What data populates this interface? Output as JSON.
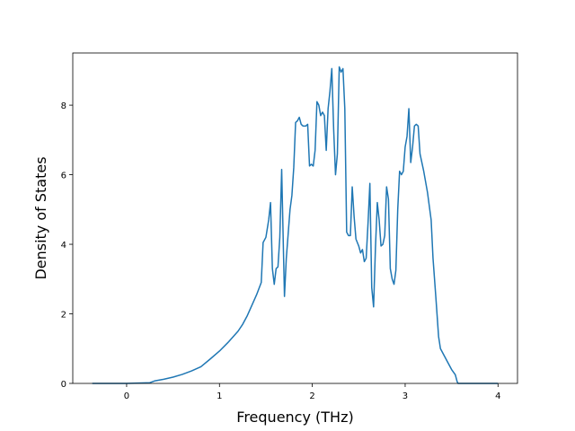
{
  "chart_data": {
    "type": "line",
    "xlabel": "Frequency (THz)",
    "ylabel": "Density of States",
    "color": "#1f77b4",
    "xlim": [
      -0.58,
      4.21
    ],
    "ylim": [
      0,
      9.5
    ],
    "xticks": [
      0,
      1,
      2,
      3,
      4
    ],
    "yticks": [
      0,
      2,
      4,
      6,
      8
    ],
    "x": [
      -0.37,
      0,
      0.25,
      0.3,
      0.4,
      0.5,
      0.6,
      0.7,
      0.8,
      0.9,
      1.0,
      1.1,
      1.2,
      1.25,
      1.3,
      1.35,
      1.4,
      1.45,
      1.47,
      1.5,
      1.53,
      1.55,
      1.57,
      1.59,
      1.61,
      1.63,
      1.65,
      1.67,
      1.69,
      1.7,
      1.72,
      1.74,
      1.76,
      1.78,
      1.8,
      1.82,
      1.84,
      1.86,
      1.88,
      1.9,
      1.93,
      1.95,
      1.97,
      1.99,
      2.01,
      2.03,
      2.05,
      2.07,
      2.09,
      2.11,
      2.13,
      2.15,
      2.17,
      2.19,
      2.21,
      2.23,
      2.25,
      2.27,
      2.29,
      2.31,
      2.33,
      2.35,
      2.37,
      2.39,
      2.41,
      2.43,
      2.45,
      2.47,
      2.5,
      2.52,
      2.54,
      2.56,
      2.58,
      2.6,
      2.62,
      2.64,
      2.66,
      2.68,
      2.7,
      2.72,
      2.74,
      2.76,
      2.78,
      2.8,
      2.82,
      2.84,
      2.86,
      2.88,
      2.9,
      2.92,
      2.94,
      2.96,
      2.98,
      3.0,
      3.02,
      3.04,
      3.06,
      3.08,
      3.1,
      3.12,
      3.14,
      3.16,
      3.2,
      3.24,
      3.28,
      3.3,
      3.33,
      3.36,
      3.38,
      3.42,
      3.46,
      3.5,
      3.54,
      3.56,
      3.57,
      4.0
    ],
    "values": [
      0,
      0,
      0.02,
      0.07,
      0.12,
      0.18,
      0.26,
      0.36,
      0.48,
      0.7,
      0.93,
      1.2,
      1.5,
      1.7,
      1.95,
      2.25,
      2.55,
      2.9,
      4.05,
      4.2,
      4.7,
      5.2,
      3.3,
      2.85,
      3.3,
      3.35,
      4.2,
      6.15,
      3.7,
      2.5,
      3.6,
      4.3,
      5.0,
      5.4,
      6.2,
      7.5,
      7.55,
      7.65,
      7.45,
      7.4,
      7.4,
      7.45,
      6.25,
      6.3,
      6.25,
      6.7,
      8.1,
      8.0,
      7.7,
      7.8,
      7.7,
      6.7,
      7.9,
      8.4,
      9.05,
      7.3,
      6.0,
      6.6,
      9.1,
      8.95,
      9.05,
      7.9,
      4.35,
      4.25,
      4.25,
      5.65,
      4.8,
      4.15,
      3.95,
      3.75,
      3.85,
      3.5,
      3.6,
      4.6,
      5.75,
      2.75,
      2.2,
      3.9,
      5.2,
      4.7,
      3.95,
      4.0,
      4.25,
      5.65,
      5.3,
      3.3,
      3.0,
      2.85,
      3.25,
      5.0,
      6.1,
      6.0,
      6.1,
      6.8,
      7.1,
      7.9,
      6.35,
      6.8,
      7.4,
      7.45,
      7.4,
      6.6,
      6.1,
      5.5,
      4.7,
      3.6,
      2.5,
      1.35,
      1.0,
      0.8,
      0.6,
      0.4,
      0.25,
      0.05,
      0,
      0
    ]
  }
}
